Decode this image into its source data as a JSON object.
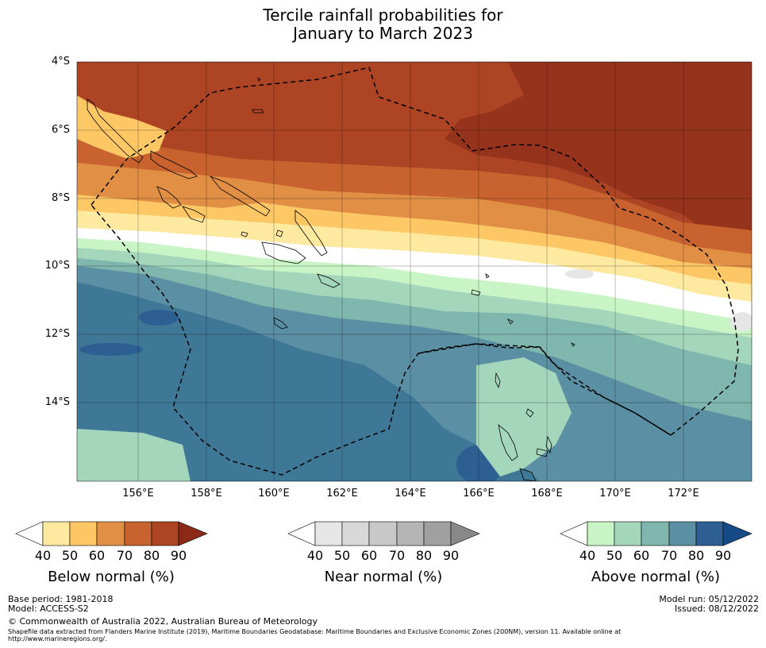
{
  "title": {
    "line1": "Tercile rainfall probabilities for",
    "line2": "January to March 2023"
  },
  "map": {
    "lat_labels": [
      "4°S",
      "6°S",
      "8°S",
      "10°S",
      "12°S",
      "14°S"
    ],
    "lon_labels": [
      "156°E",
      "158°E",
      "160°E",
      "162°E",
      "164°E",
      "166°E",
      "168°E",
      "170°E",
      "172°E"
    ],
    "region": "Solomon Islands and Vanuatu, Southwest Pacific"
  },
  "legends": {
    "below": {
      "title": "Below normal (%)",
      "ticks": [
        "40",
        "50",
        "60",
        "70",
        "80",
        "90"
      ],
      "colors": [
        "#ffffff",
        "#fdeaa0",
        "#fdc766",
        "#e18f45",
        "#c8622f",
        "#ad4423",
        "#8b2a17"
      ]
    },
    "near": {
      "title": "Near normal (%)",
      "ticks": [
        "40",
        "50",
        "60",
        "70",
        "80",
        "90"
      ],
      "colors": [
        "#ffffff",
        "#e6e6e6",
        "#d8d8d8",
        "#c8c8c8",
        "#b5b5b5",
        "#a0a0a0",
        "#888888"
      ]
    },
    "above": {
      "title": "Above normal (%)",
      "ticks": [
        "40",
        "50",
        "60",
        "70",
        "80",
        "90"
      ],
      "colors": [
        "#ffffff",
        "#c9f5c6",
        "#a4d6bb",
        "#7fb6ad",
        "#5b8fa3",
        "#2e5f93",
        "#164a86"
      ]
    }
  },
  "footer": {
    "base_period": "Base period: 1981-2018",
    "model": "Model: ACCESS-S2",
    "model_run": "Model run: 05/12/2022",
    "issued": "Issued: 08/12/2022",
    "copyright": "© Commonwealth of Australia 2022, Australian Bureau of Meteorology",
    "shapefile_line1": "Shapefile data extracted from Flanders Marine Institute (2019), Maritime Boundaries Geodatabase: Maritime Boundaries and Exclusive Economic Zones (200NM), version 11. Available online at",
    "shapefile_line2": "http://www.marineregions.org/."
  }
}
